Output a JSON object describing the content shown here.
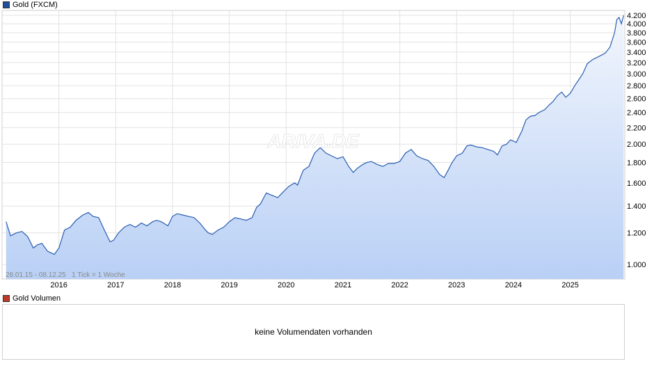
{
  "legend": {
    "main_label": "Gold (FXCM)",
    "main_color": "#1f4e9c",
    "volume_label": "Gold Volumen",
    "volume_color": "#c0392b"
  },
  "watermark": "ARIVA.DE",
  "footer_note": "28.01.15 - 08.12.25   1 Tick = 1 Woche",
  "volume_message": "keine Volumendaten vorhanden",
  "chart_data": {
    "type": "area",
    "title": "",
    "xlabel": "",
    "ylabel": "",
    "yscale": "log",
    "ylim": [
      920,
      4320
    ],
    "xlim": [
      2015.0,
      2025.96
    ],
    "grid": true,
    "colors": {
      "line": "#2a5db0",
      "fill_top": "#f2f6fd",
      "fill_bottom": "#b9d0f5"
    },
    "x_ticks": [
      {
        "label": "2016",
        "x": 2016
      },
      {
        "label": "2017",
        "x": 2017
      },
      {
        "label": "2018",
        "x": 2018
      },
      {
        "label": "2019",
        "x": 2019
      },
      {
        "label": "2020",
        "x": 2020
      },
      {
        "label": "2021",
        "x": 2021
      },
      {
        "label": "2022",
        "x": 2022
      },
      {
        "label": "2023",
        "x": 2023
      },
      {
        "label": "2024",
        "x": 2024
      },
      {
        "label": "2025",
        "x": 2025
      }
    ],
    "y_ticks": [
      {
        "label": "4.200",
        "v": 4200
      },
      {
        "label": "4.000",
        "v": 4000
      },
      {
        "label": "3.800",
        "v": 3800
      },
      {
        "label": "3.600",
        "v": 3600
      },
      {
        "label": "3.400",
        "v": 3400
      },
      {
        "label": "3.200",
        "v": 3200
      },
      {
        "label": "3.000",
        "v": 3000
      },
      {
        "label": "2.800",
        "v": 2800
      },
      {
        "label": "2.600",
        "v": 2600
      },
      {
        "label": "2.400",
        "v": 2400
      },
      {
        "label": "2.200",
        "v": 2200
      },
      {
        "label": "2.000",
        "v": 2000
      },
      {
        "label": "1.800",
        "v": 1800
      },
      {
        "label": "1.600",
        "v": 1600
      },
      {
        "label": "1.400",
        "v": 1400
      },
      {
        "label": "1.200",
        "v": 1200
      },
      {
        "label": "1.000",
        "v": 1000
      }
    ],
    "series": [
      {
        "x": [
          2015.07,
          2015.15,
          2015.25,
          2015.35,
          2015.45,
          2015.55,
          2015.62,
          2015.7,
          2015.8,
          2015.92,
          2016.0,
          2016.1,
          2016.2,
          2016.3,
          2016.42,
          2016.52,
          2016.6,
          2016.7,
          2016.8,
          2016.9,
          2016.96,
          2017.05,
          2017.15,
          2017.25,
          2017.35,
          2017.45,
          2017.55,
          2017.65,
          2017.72,
          2017.8,
          2017.92,
          2018.0,
          2018.08,
          2018.18,
          2018.28,
          2018.38,
          2018.48,
          2018.58,
          2018.63,
          2018.7,
          2018.8,
          2018.9,
          2019.0,
          2019.1,
          2019.2,
          2019.3,
          2019.4,
          2019.48,
          2019.55,
          2019.65,
          2019.75,
          2019.85,
          2019.95,
          2020.05,
          2020.15,
          2020.2,
          2020.3,
          2020.4,
          2020.5,
          2020.6,
          2020.7,
          2020.8,
          2020.9,
          2021.0,
          2021.1,
          2021.18,
          2021.25,
          2021.35,
          2021.42,
          2021.5,
          2021.6,
          2021.7,
          2021.8,
          2021.9,
          2022.0,
          2022.1,
          2022.2,
          2022.3,
          2022.4,
          2022.5,
          2022.6,
          2022.7,
          2022.78,
          2022.85,
          2022.92,
          2023.0,
          2023.1,
          2023.18,
          2023.25,
          2023.35,
          2023.45,
          2023.55,
          2023.65,
          2023.72,
          2023.8,
          2023.88,
          2023.95,
          2024.05,
          2024.15,
          2024.22,
          2024.3,
          2024.38,
          2024.45,
          2024.55,
          2024.62,
          2024.7,
          2024.78,
          2024.85,
          2024.92,
          2025.0,
          2025.08,
          2025.15,
          2025.22,
          2025.3,
          2025.4,
          2025.48,
          2025.55,
          2025.62,
          2025.7,
          2025.78,
          2025.82,
          2025.86,
          2025.9,
          2025.94
        ],
        "y": [
          1280,
          1180,
          1200,
          1210,
          1175,
          1100,
          1120,
          1130,
          1080,
          1060,
          1100,
          1220,
          1240,
          1290,
          1330,
          1350,
          1320,
          1310,
          1220,
          1140,
          1150,
          1200,
          1240,
          1260,
          1240,
          1270,
          1250,
          1280,
          1290,
          1280,
          1250,
          1320,
          1340,
          1330,
          1320,
          1310,
          1270,
          1220,
          1200,
          1190,
          1220,
          1240,
          1280,
          1310,
          1300,
          1290,
          1310,
          1390,
          1420,
          1510,
          1490,
          1470,
          1520,
          1570,
          1600,
          1580,
          1720,
          1760,
          1900,
          1960,
          1900,
          1870,
          1840,
          1860,
          1760,
          1700,
          1740,
          1780,
          1800,
          1810,
          1780,
          1760,
          1790,
          1790,
          1810,
          1900,
          1940,
          1870,
          1840,
          1820,
          1760,
          1680,
          1650,
          1720,
          1800,
          1870,
          1900,
          1980,
          1990,
          1970,
          1960,
          1940,
          1920,
          1880,
          1980,
          2000,
          2050,
          2020,
          2160,
          2300,
          2350,
          2360,
          2400,
          2440,
          2500,
          2560,
          2650,
          2700,
          2620,
          2680,
          2800,
          2900,
          3000,
          3180,
          3260,
          3300,
          3340,
          3380,
          3500,
          3800,
          4100,
          4150,
          4000,
          4200
        ]
      }
    ]
  }
}
